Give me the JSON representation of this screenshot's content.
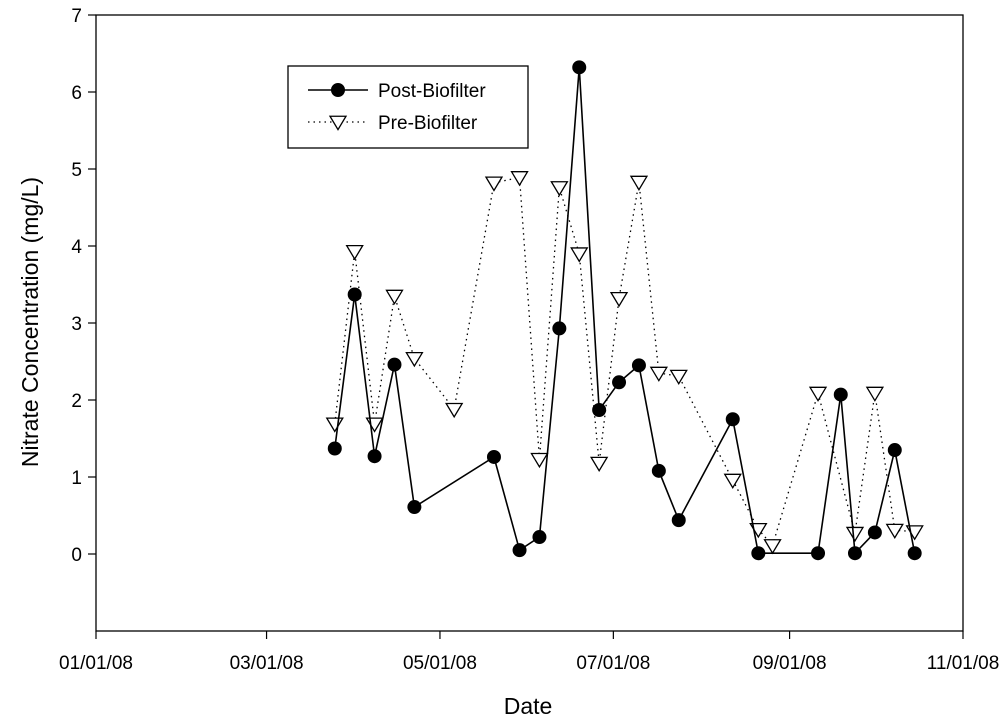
{
  "chart_data": {
    "type": "scatter",
    "xlabel": "Date",
    "ylabel": "Nitrate Concentration (mg/L)",
    "xlim": [
      "2008-01-01",
      "2008-11-01"
    ],
    "ylim": [
      -1,
      7
    ],
    "x_ticks": [
      "01/01/08",
      "03/01/08",
      "05/01/08",
      "07/01/08",
      "09/01/08",
      "11/01/08"
    ],
    "y_ticks": [
      0,
      1,
      2,
      3,
      4,
      5,
      6,
      7
    ],
    "legend_position": "top-left",
    "grid": false,
    "series": [
      {
        "name": "Post-Biofilter",
        "style": "solid-line-filled-circle",
        "color": "#000000",
        "x": [
          "2008-03-25",
          "2008-04-01",
          "2008-04-08",
          "2008-04-15",
          "2008-04-22",
          "2008-05-20",
          "2008-05-29",
          "2008-06-05",
          "2008-06-12",
          "2008-06-19",
          "2008-06-26",
          "2008-07-03",
          "2008-07-10",
          "2008-07-17",
          "2008-07-24",
          "2008-08-12",
          "2008-08-21",
          "2008-09-11",
          "2008-09-19",
          "2008-09-24",
          "2008-10-01",
          "2008-10-08",
          "2008-10-15"
        ],
        "y": [
          1.37,
          3.37,
          1.27,
          2.46,
          0.61,
          1.26,
          0.05,
          0.22,
          2.93,
          6.32,
          1.87,
          2.23,
          2.45,
          1.08,
          0.44,
          1.75,
          0.01,
          0.01,
          2.07,
          0.01,
          0.28,
          1.35,
          0.01
        ]
      },
      {
        "name": "Pre-Biofilter",
        "style": "dotted-line-open-triangle",
        "color": "#000000",
        "x": [
          "2008-03-25",
          "2008-04-01",
          "2008-04-08",
          "2008-04-15",
          "2008-04-22",
          "2008-05-06",
          "2008-05-20",
          "2008-05-29",
          "2008-06-05",
          "2008-06-12",
          "2008-06-19",
          "2008-06-26",
          "2008-07-03",
          "2008-07-10",
          "2008-07-17",
          "2008-07-24",
          "2008-08-12",
          "2008-08-21",
          "2008-08-26",
          "2008-09-11",
          "2008-09-24",
          "2008-10-01",
          "2008-10-08",
          "2008-10-15"
        ],
        "y": [
          1.69,
          3.93,
          1.69,
          3.35,
          2.54,
          1.88,
          4.82,
          4.89,
          1.23,
          4.76,
          3.9,
          1.18,
          3.32,
          4.83,
          2.35,
          2.31,
          0.96,
          0.32,
          0.11,
          2.09,
          0.27,
          2.09,
          0.31,
          0.29
        ]
      }
    ]
  }
}
